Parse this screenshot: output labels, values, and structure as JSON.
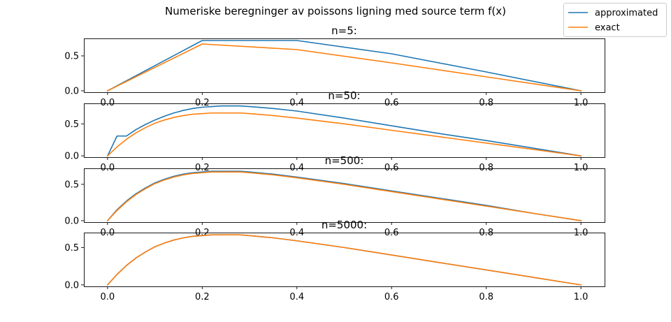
{
  "figure": {
    "suptitle": "Numeriske beregninger av poissons ligning med source term f(x)"
  },
  "legend": {
    "placement": "top-right",
    "entries": [
      {
        "label": "approximated",
        "color": "#1f77b4"
      },
      {
        "label": "exact",
        "color": "#ff7f0e"
      }
    ]
  },
  "chart_data": [
    {
      "type": "line",
      "title": "n=5:",
      "xlim": [
        -0.05,
        1.05
      ],
      "ylim": [
        -0.02,
        0.75
      ],
      "xticks": [
        0.0,
        0.2,
        0.4,
        0.6,
        0.8,
        1.0
      ],
      "xtick_labels": [
        "0.0",
        "0.2",
        "0.4",
        "0.6",
        "0.8",
        "1.0"
      ],
      "yticks": [
        0.0,
        0.5
      ],
      "ytick_labels": [
        "0.0",
        "0.5"
      ],
      "series": [
        {
          "name": "approximated",
          "color": "#1f77b4",
          "x": [
            0.0,
            0.2,
            0.4,
            0.6,
            0.8,
            1.0
          ],
          "y": [
            0.0,
            0.72,
            0.72,
            0.53,
            0.27,
            0.0
          ]
        },
        {
          "name": "exact",
          "color": "#ff7f0e",
          "x": [
            0.0,
            0.2,
            0.4,
            0.6,
            0.8,
            1.0
          ],
          "y": [
            0.0,
            0.67,
            0.59,
            0.4,
            0.2,
            0.0
          ]
        }
      ]
    },
    {
      "type": "line",
      "title": "n=50:",
      "xlim": [
        -0.05,
        1.05
      ],
      "ylim": [
        -0.02,
        0.82
      ],
      "xticks": [
        0.0,
        0.2,
        0.4,
        0.6,
        0.8,
        1.0
      ],
      "xtick_labels": [
        "0.0",
        "0.2",
        "0.4",
        "0.6",
        "0.8",
        "1.0"
      ],
      "yticks": [
        0.0,
        0.5
      ],
      "ytick_labels": [
        "0.0",
        "0.5"
      ],
      "series": [
        {
          "name": "approximated",
          "color": "#1f77b4",
          "x": [
            0.0,
            0.02,
            0.04,
            0.06,
            0.08,
            0.1,
            0.12,
            0.14,
            0.16,
            0.18,
            0.2,
            0.22,
            0.24,
            0.26,
            0.28,
            0.3,
            0.35,
            0.4,
            0.5,
            0.6,
            0.7,
            0.8,
            0.9,
            1.0
          ],
          "y": [
            0.0,
            0.31,
            0.31,
            0.41,
            0.49,
            0.56,
            0.62,
            0.67,
            0.71,
            0.74,
            0.76,
            0.77,
            0.78,
            0.78,
            0.78,
            0.77,
            0.74,
            0.7,
            0.59,
            0.47,
            0.35,
            0.24,
            0.12,
            0.0
          ]
        },
        {
          "name": "exact",
          "color": "#ff7f0e",
          "x": [
            0.0,
            0.02,
            0.04,
            0.06,
            0.08,
            0.1,
            0.12,
            0.14,
            0.16,
            0.18,
            0.2,
            0.22,
            0.24,
            0.26,
            0.28,
            0.3,
            0.35,
            0.4,
            0.5,
            0.6,
            0.7,
            0.8,
            0.9,
            1.0
          ],
          "y": [
            0.0,
            0.14,
            0.26,
            0.36,
            0.44,
            0.51,
            0.56,
            0.6,
            0.63,
            0.65,
            0.66,
            0.67,
            0.67,
            0.67,
            0.67,
            0.66,
            0.63,
            0.59,
            0.5,
            0.4,
            0.3,
            0.2,
            0.1,
            0.0
          ]
        }
      ]
    },
    {
      "type": "line",
      "title": "n=500:",
      "xlim": [
        -0.05,
        1.05
      ],
      "ylim": [
        -0.02,
        0.72
      ],
      "xticks": [
        0.0,
        0.2,
        0.4,
        0.6,
        0.8,
        1.0
      ],
      "xtick_labels": [
        "0.0",
        "0.2",
        "0.4",
        "0.6",
        "0.8",
        "1.0"
      ],
      "yticks": [
        0.0,
        0.5
      ],
      "ytick_labels": [
        "0.0",
        "0.5"
      ],
      "series": [
        {
          "name": "approximated",
          "color": "#1f77b4",
          "x": [
            0.0,
            0.02,
            0.04,
            0.06,
            0.08,
            0.1,
            0.12,
            0.14,
            0.16,
            0.18,
            0.2,
            0.22,
            0.24,
            0.26,
            0.28,
            0.3,
            0.35,
            0.4,
            0.5,
            0.6,
            0.7,
            0.8,
            0.9,
            1.0
          ],
          "y": [
            0.0,
            0.15,
            0.27,
            0.37,
            0.45,
            0.52,
            0.57,
            0.61,
            0.64,
            0.66,
            0.67,
            0.68,
            0.68,
            0.68,
            0.68,
            0.67,
            0.64,
            0.6,
            0.51,
            0.41,
            0.31,
            0.21,
            0.1,
            0.0
          ]
        },
        {
          "name": "exact",
          "color": "#ff7f0e",
          "x": [
            0.0,
            0.02,
            0.04,
            0.06,
            0.08,
            0.1,
            0.12,
            0.14,
            0.16,
            0.18,
            0.2,
            0.22,
            0.24,
            0.26,
            0.28,
            0.3,
            0.35,
            0.4,
            0.5,
            0.6,
            0.7,
            0.8,
            0.9,
            1.0
          ],
          "y": [
            0.0,
            0.14,
            0.26,
            0.36,
            0.44,
            0.51,
            0.56,
            0.6,
            0.63,
            0.65,
            0.66,
            0.67,
            0.67,
            0.67,
            0.67,
            0.66,
            0.63,
            0.59,
            0.5,
            0.4,
            0.3,
            0.2,
            0.1,
            0.0
          ]
        }
      ]
    },
    {
      "type": "line",
      "title": "n=5000:",
      "xlim": [
        -0.05,
        1.05
      ],
      "ylim": [
        -0.02,
        0.7
      ],
      "xticks": [
        0.0,
        0.2,
        0.4,
        0.6,
        0.8,
        1.0
      ],
      "xtick_labels": [
        "0.0",
        "0.2",
        "0.4",
        "0.6",
        "0.8",
        "1.0"
      ],
      "yticks": [
        0.0,
        0.5
      ],
      "ytick_labels": [
        "0.0",
        "0.5"
      ],
      "series": [
        {
          "name": "approximated",
          "color": "#1f77b4",
          "x": [
            0.0,
            0.02,
            0.04,
            0.06,
            0.08,
            0.1,
            0.12,
            0.14,
            0.16,
            0.18,
            0.2,
            0.22,
            0.24,
            0.26,
            0.28,
            0.3,
            0.35,
            0.4,
            0.5,
            0.6,
            0.7,
            0.8,
            0.9,
            1.0
          ],
          "y": [
            0.0,
            0.14,
            0.26,
            0.36,
            0.44,
            0.51,
            0.56,
            0.6,
            0.63,
            0.65,
            0.66,
            0.67,
            0.67,
            0.67,
            0.67,
            0.66,
            0.63,
            0.59,
            0.5,
            0.4,
            0.3,
            0.2,
            0.1,
            0.0
          ]
        },
        {
          "name": "exact",
          "color": "#ff7f0e",
          "x": [
            0.0,
            0.02,
            0.04,
            0.06,
            0.08,
            0.1,
            0.12,
            0.14,
            0.16,
            0.18,
            0.2,
            0.22,
            0.24,
            0.26,
            0.28,
            0.3,
            0.35,
            0.4,
            0.5,
            0.6,
            0.7,
            0.8,
            0.9,
            1.0
          ],
          "y": [
            0.0,
            0.14,
            0.26,
            0.36,
            0.44,
            0.51,
            0.56,
            0.6,
            0.63,
            0.65,
            0.66,
            0.67,
            0.67,
            0.67,
            0.67,
            0.66,
            0.63,
            0.59,
            0.5,
            0.4,
            0.3,
            0.2,
            0.1,
            0.0
          ]
        }
      ]
    }
  ]
}
